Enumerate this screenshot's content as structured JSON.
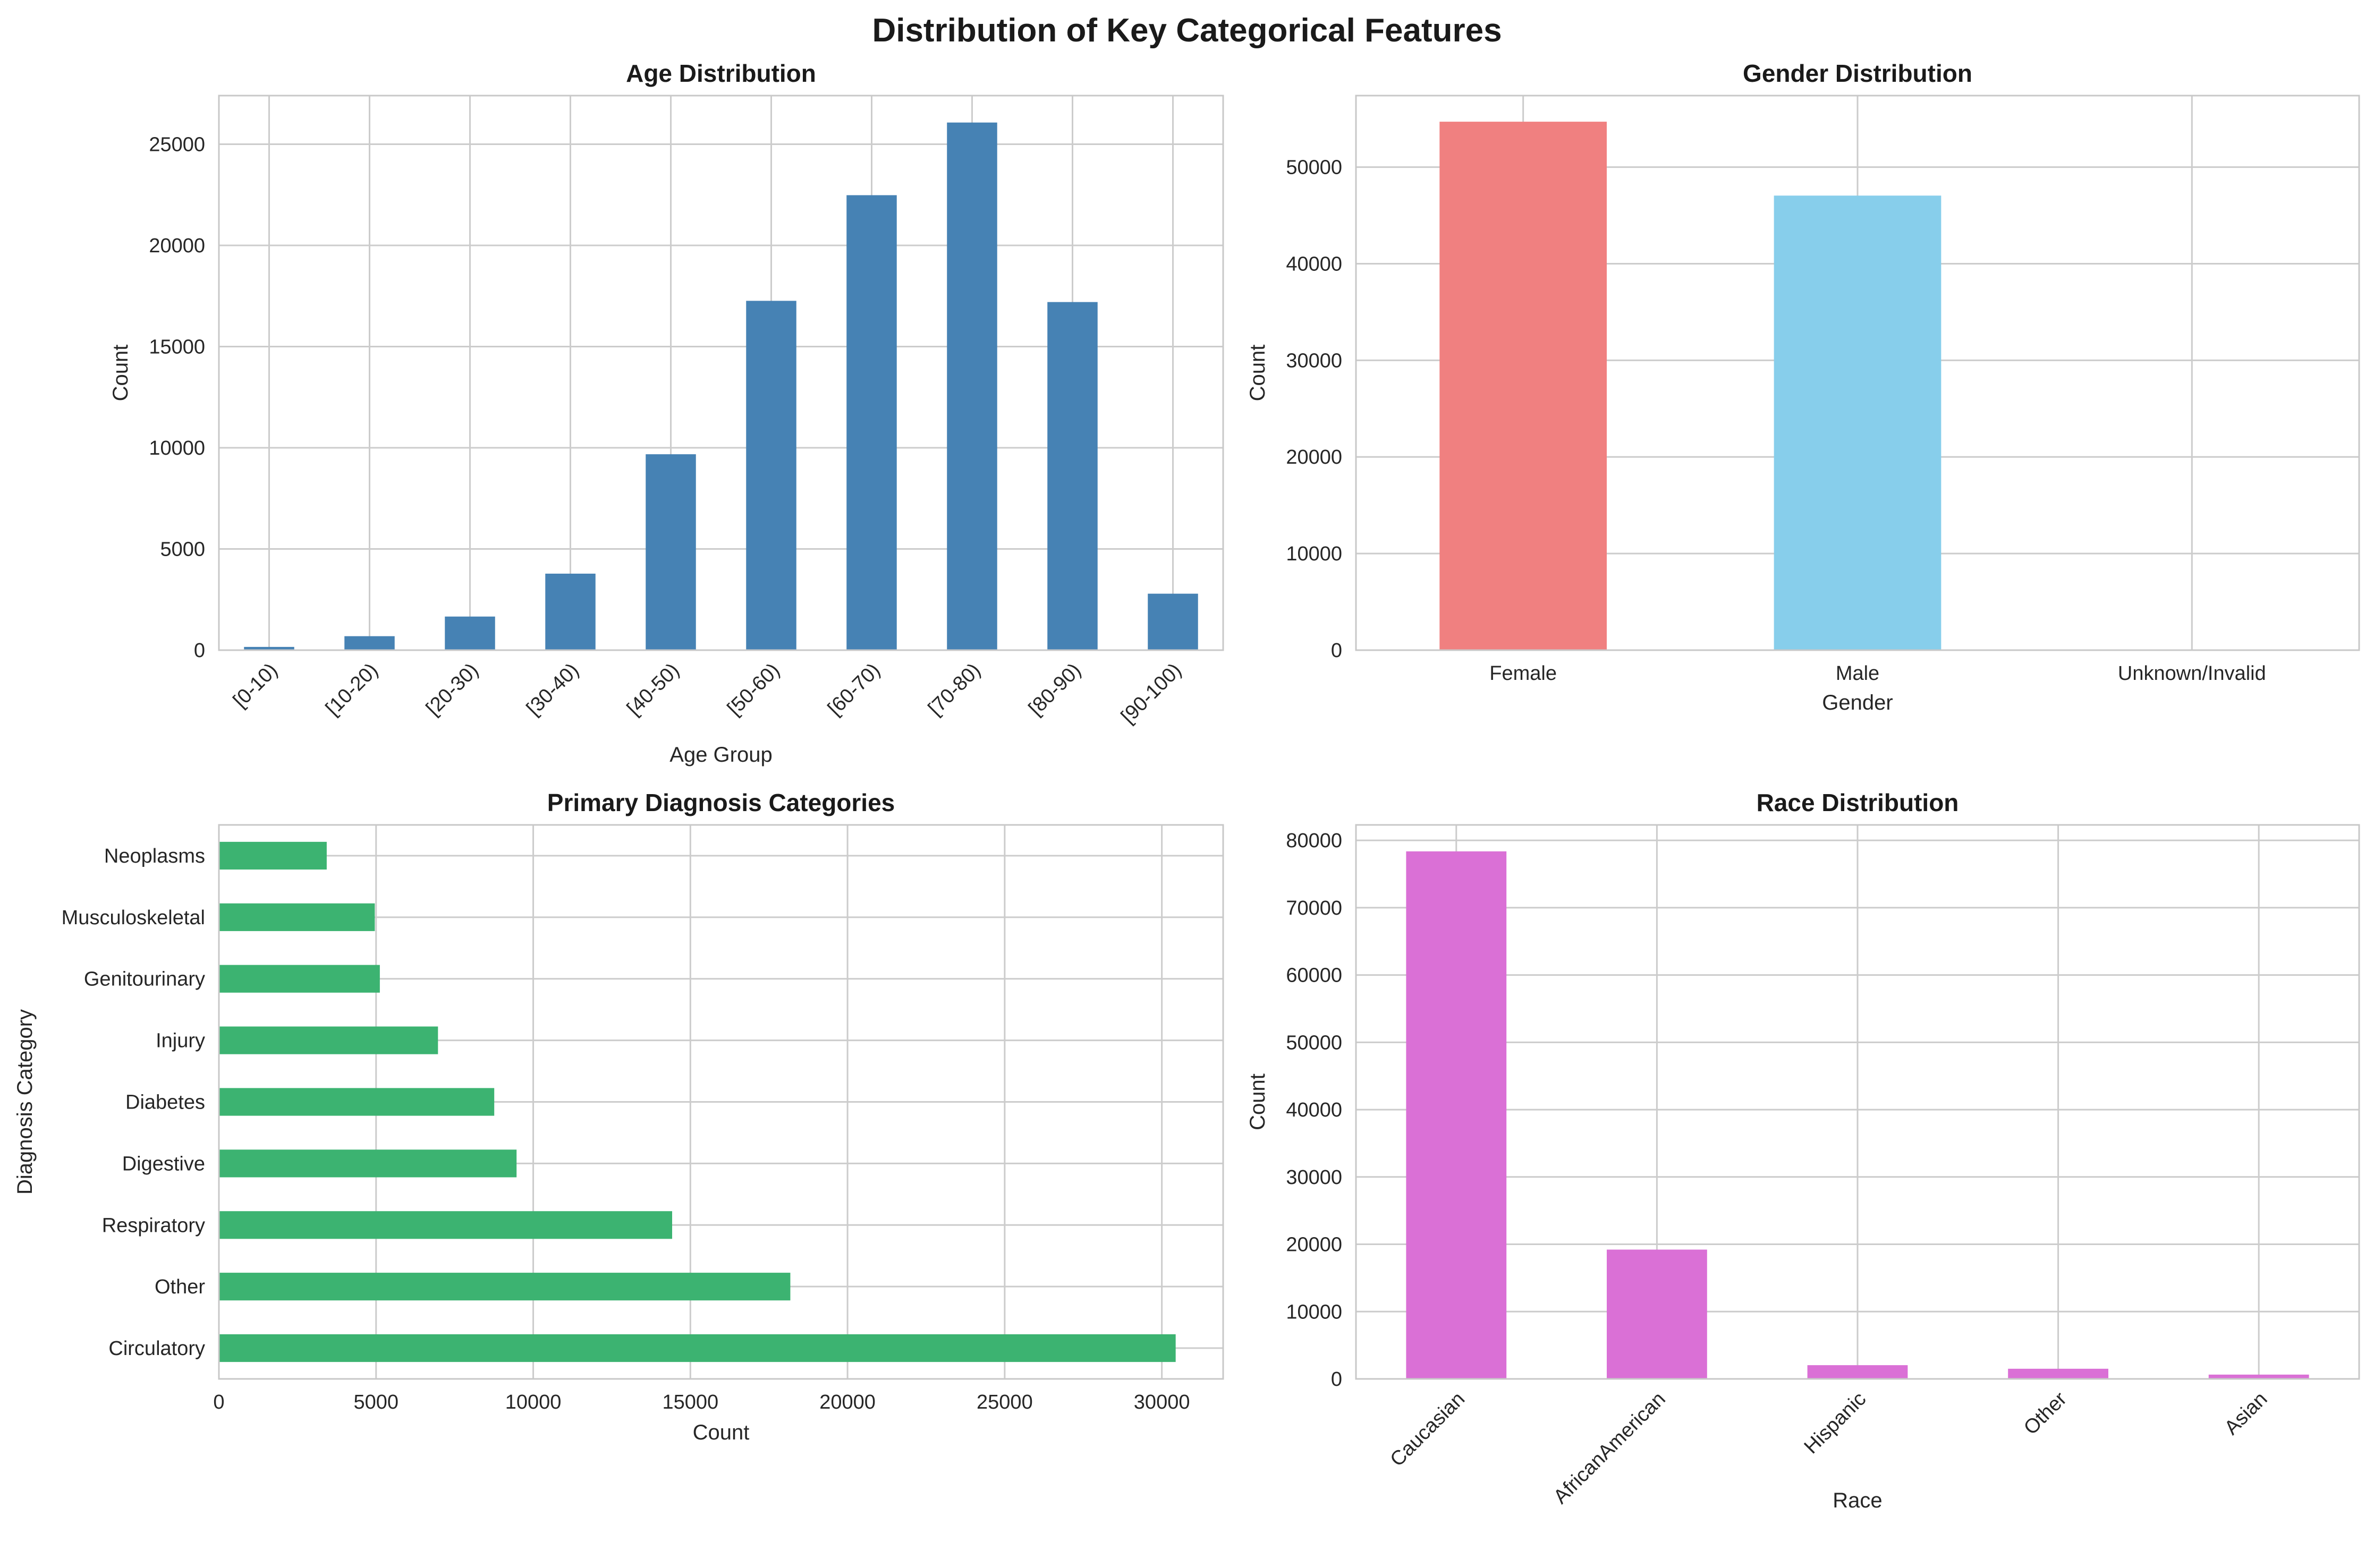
{
  "figure": {
    "title": "Distribution of Key Categorical Features"
  },
  "chart_data": [
    {
      "id": "age",
      "type": "bar",
      "orientation": "vertical",
      "title": "Age Distribution",
      "xlabel": "Age Group",
      "ylabel": "Count",
      "categories": [
        "[0-10)",
        "[10-20)",
        "[20-30)",
        "[30-40)",
        "[40-50)",
        "[50-60)",
        "[60-70)",
        "[70-80)",
        "[80-90)",
        "[90-100)"
      ],
      "values": [
        160,
        690,
        1660,
        3780,
        9680,
        17260,
        22480,
        26070,
        17200,
        2790
      ],
      "color": "#4682b4",
      "ylim": [
        0,
        27400
      ],
      "yticks": [
        0,
        5000,
        10000,
        15000,
        20000,
        25000
      ],
      "grid": true,
      "rotate_xticks": true
    },
    {
      "id": "gender",
      "type": "bar",
      "orientation": "vertical",
      "title": "Gender Distribution",
      "xlabel": "Gender",
      "ylabel": "Count",
      "categories": [
        "Female",
        "Male",
        "Unknown/Invalid"
      ],
      "values": [
        54700,
        47050,
        3
      ],
      "colors": [
        "#f08080",
        "#87ceeb",
        "#87ceeb"
      ],
      "ylim": [
        0,
        57400
      ],
      "yticks": [
        0,
        10000,
        20000,
        30000,
        40000,
        50000
      ],
      "grid": true,
      "rotate_xticks": false
    },
    {
      "id": "diagnosis",
      "type": "bar",
      "orientation": "horizontal",
      "title": "Primary Diagnosis Categories",
      "xlabel": "Count",
      "ylabel": "Diagnosis Category",
      "categories": [
        "Circulatory",
        "Other",
        "Respiratory",
        "Digestive",
        "Diabetes",
        "Injury",
        "Genitourinary",
        "Musculoskeletal",
        "Neoplasms"
      ],
      "values": [
        30440,
        18180,
        14420,
        9470,
        8760,
        6970,
        5120,
        4960,
        3430
      ],
      "color": "#3cb371",
      "xlim": [
        0,
        31950
      ],
      "xticks": [
        0,
        5000,
        10000,
        15000,
        20000,
        25000,
        30000
      ],
      "grid": true
    },
    {
      "id": "race",
      "type": "bar",
      "orientation": "vertical",
      "title": "Race Distribution",
      "xlabel": "Race",
      "ylabel": "Count",
      "categories": [
        "Caucasian",
        "AfricanAmerican",
        "Hispanic",
        "Other",
        "Asian"
      ],
      "values": [
        78370,
        19210,
        2040,
        1510,
        640
      ],
      "color": "#da70d6",
      "ylim": [
        0,
        82300
      ],
      "yticks": [
        0,
        10000,
        20000,
        30000,
        40000,
        50000,
        60000,
        70000,
        80000
      ],
      "grid": true,
      "rotate_xticks": true
    }
  ]
}
